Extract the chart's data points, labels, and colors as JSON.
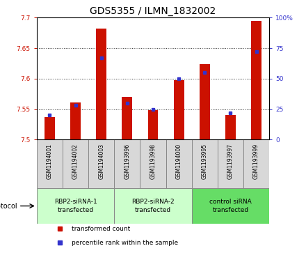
{
  "title": "GDS5355 / ILMN_1832002",
  "samples": [
    "GSM1194001",
    "GSM1194002",
    "GSM1194003",
    "GSM1193996",
    "GSM1193998",
    "GSM1194000",
    "GSM1193995",
    "GSM1193997",
    "GSM1193999"
  ],
  "red_values": [
    7.537,
    7.561,
    7.682,
    7.57,
    7.548,
    7.597,
    7.624,
    7.54,
    7.695
  ],
  "blue_values": [
    20,
    28,
    67,
    30,
    25,
    50,
    55,
    22,
    72
  ],
  "ylim_left": [
    7.5,
    7.7
  ],
  "ylim_right": [
    0,
    100
  ],
  "yticks_left": [
    7.5,
    7.55,
    7.6,
    7.65,
    7.7
  ],
  "yticks_right": [
    0,
    25,
    50,
    75,
    100
  ],
  "red_color": "#cc1100",
  "blue_color": "#3333cc",
  "bar_base": 7.5,
  "groups": [
    {
      "label": "RBP2-siRNA-1\ntransfected",
      "start": 0,
      "end": 3,
      "color": "#ccffcc"
    },
    {
      "label": "RBP2-siRNA-2\ntransfected",
      "start": 3,
      "end": 6,
      "color": "#ccffcc"
    },
    {
      "label": "control siRNA\ntransfected",
      "start": 6,
      "end": 9,
      "color": "#66dd66"
    }
  ],
  "protocol_label": "protocol",
  "legend_items": [
    {
      "color": "#cc1100",
      "label": "transformed count"
    },
    {
      "color": "#3333cc",
      "label": "percentile rank within the sample"
    }
  ],
  "plot_bg": "#ffffff",
  "grid_color": "#333333",
  "sample_area_color": "#d8d8d8",
  "tick_label_fontsize": 6.5,
  "title_fontsize": 10,
  "bar_width": 0.4
}
